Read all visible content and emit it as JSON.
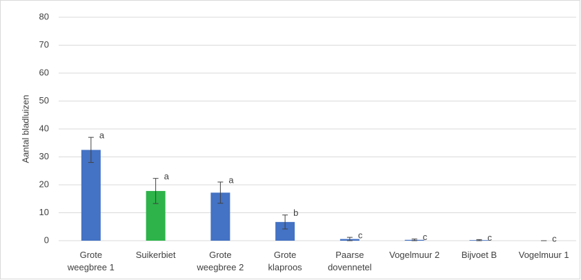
{
  "chart_data": {
    "type": "bar",
    "y_label": "Aantal bladluizen",
    "categories": [
      "Grote weegbree 1",
      "Suikerbiet",
      "Grote weegbree 2",
      "Grote klaproos",
      "Paarse dovennetel",
      "Vogelmuur 2",
      "Bijvoet B",
      "Vogelmuur 1"
    ],
    "values": [
      32.5,
      17.8,
      17.2,
      6.7,
      0.6,
      0.3,
      0.2,
      0
    ],
    "errors": [
      4.5,
      4.5,
      3.8,
      2.5,
      0.6,
      0.3,
      0.2,
      0
    ],
    "annotations": [
      "a",
      "a",
      "a",
      "b",
      "c",
      "c",
      "c",
      "c"
    ],
    "colors": [
      "#4472c4",
      "#2db34a",
      "#4472c4",
      "#4472c4",
      "#4472c4",
      "#4472c4",
      "#4472c4",
      "#4472c4"
    ],
    "ylim": [
      0,
      80
    ],
    "yticks": [
      0,
      10,
      20,
      30,
      40,
      50,
      60,
      70,
      80
    ],
    "grid": true
  }
}
